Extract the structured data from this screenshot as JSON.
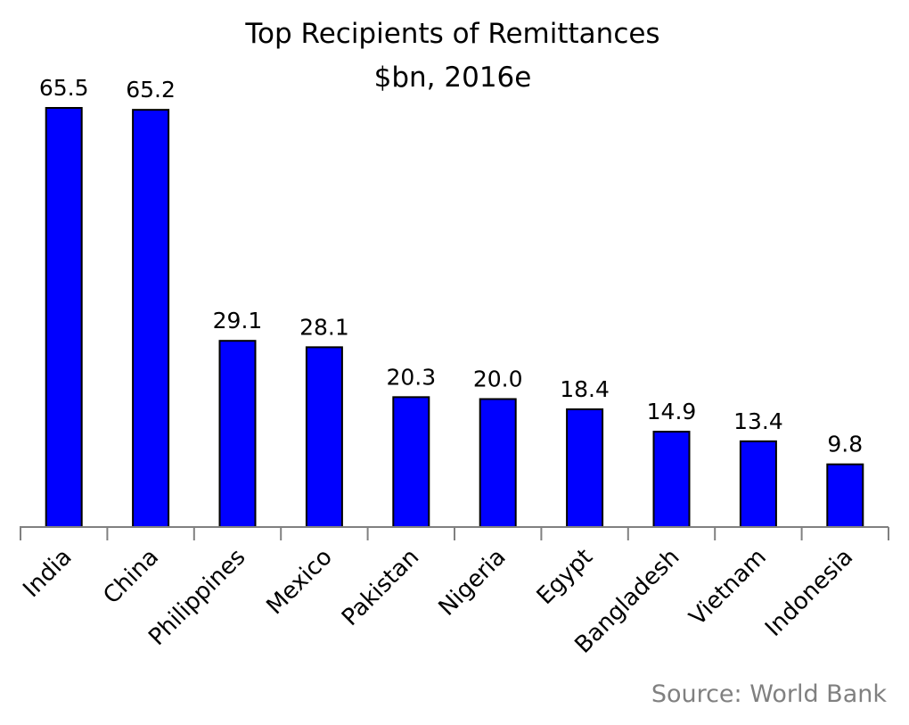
{
  "chart_data": {
    "type": "bar",
    "title": "Top Recipients of Remittances",
    "subtitle": "$bn, 2016e",
    "source": "Source: World Bank",
    "categories": [
      "India",
      "China",
      "Philippines",
      "Mexico",
      "Pakistan",
      "Nigeria",
      "Egypt",
      "Bangladesh",
      "Vietnam",
      "Indonesia"
    ],
    "values": [
      65.5,
      65.2,
      29.1,
      28.1,
      20.3,
      20.0,
      18.4,
      14.9,
      13.4,
      9.8
    ],
    "value_labels": [
      "65.5",
      "65.2",
      "29.1",
      "28.1",
      "20.3",
      "20.0",
      "18.4",
      "14.9",
      "13.4",
      "9.8"
    ],
    "xlabel": "",
    "ylabel": "",
    "ylim": [
      0,
      65.5
    ],
    "grid": false,
    "y_axis_visible": false,
    "bar_color": "#0000FF",
    "bar_border_color": "#000000",
    "source_color": "#808080"
  }
}
